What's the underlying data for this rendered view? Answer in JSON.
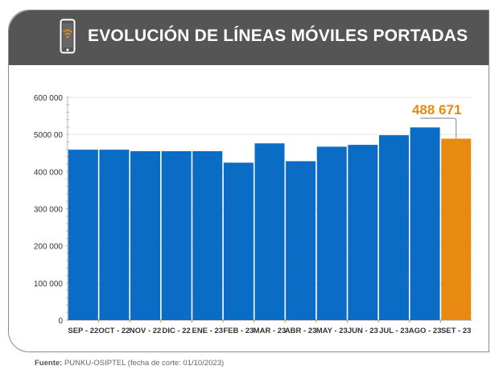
{
  "header": {
    "title": "EVOLUCIÓN DE LÍNEAS MÓVILES PORTADAS",
    "icon": "mobile-signal-icon"
  },
  "footer": {
    "source_label": "Fuente:",
    "source_text": "PUNKU-OSIPTEL (fecha de corte: 01/10/2023)"
  },
  "colors": {
    "header_bg": "#555555",
    "bar_blue": "#0a6cc4",
    "bar_highlight": "#e88a12",
    "accent": "#e88a12"
  },
  "chart_data": {
    "type": "bar",
    "title": "EVOLUCIÓN DE LÍNEAS MÓVILES PORTADAS",
    "xlabel": "",
    "ylabel": "",
    "categories": [
      "SEP - 22",
      "OCT - 22",
      "NOV - 22",
      "DIC - 22",
      "ENE - 23",
      "FEB - 23",
      "MAR - 23",
      "ABR - 23",
      "MAY - 23",
      "JUN - 23",
      "JUL - 23",
      "AGO - 23",
      "SET - 23"
    ],
    "values": [
      459000,
      459000,
      455000,
      455000,
      455000,
      424000,
      476000,
      428000,
      467000,
      472000,
      498000,
      519000,
      488671
    ],
    "highlight_index": 12,
    "annotation": "488 671",
    "ylim": [
      0,
      600000
    ],
    "yticks": [
      0,
      100000,
      200000,
      300000,
      400000,
      500000,
      600000
    ],
    "ytick_labels": [
      "0",
      "100 000",
      "200 000",
      "300 000",
      "400 000",
      "5000 00",
      "600 000"
    ],
    "grid": true,
    "legend": "none"
  }
}
